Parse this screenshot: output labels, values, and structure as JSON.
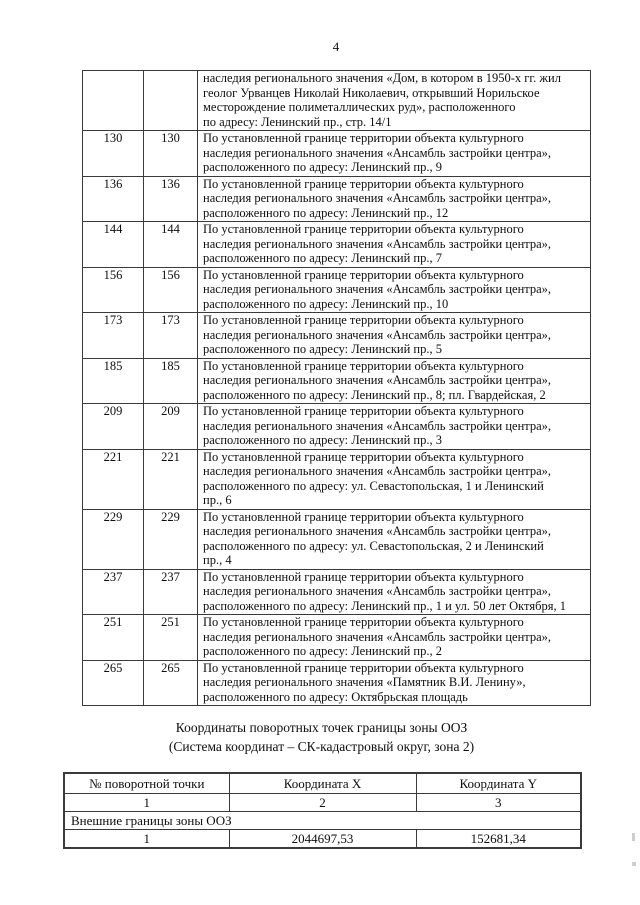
{
  "page": {
    "number": "4"
  },
  "colors": {
    "text_color": "#0e0e0e",
    "border_color": "#3a3a3a",
    "page_background": "#ffffff"
  },
  "table1": {
    "rows": [
      {
        "num1": "",
        "num2": "",
        "description": "наследия регионального значения «Дом, в котором в 1950-х гг. жил\nгеолог Урванцев Николай Николаевич, открывший Норильское\nместорождение полиметаллических руд», расположенного\nпо адресу: Ленинский пр., стр. 14/1"
      },
      {
        "num1": "130",
        "num2": "130",
        "description": "По установленной границе территории объекта культурного\nнаследия регионального значения «Ансамбль застройки центра»,\nрасположенного по адресу: Ленинский пр., 9"
      },
      {
        "num1": "136",
        "num2": "136",
        "description": "По установленной границе территории объекта культурного\nнаследия регионального значения «Ансамбль застройки центра»,\nрасположенного по адресу: Ленинский пр., 12"
      },
      {
        "num1": "144",
        "num2": "144",
        "description": "По установленной границе территории объекта культурного\nнаследия регионального значения «Ансамбль застройки центра»,\nрасположенного по адресу: Ленинский пр., 7"
      },
      {
        "num1": "156",
        "num2": "156",
        "description": "По установленной границе территории объекта культурного\nнаследия регионального значения «Ансамбль застройки центра»,\nрасположенного по адресу: Ленинский пр., 10"
      },
      {
        "num1": "173",
        "num2": "173",
        "description": "По установленной границе территории объекта культурного\nнаследия регионального значения «Ансамбль застройки центра»,\nрасположенного по адресу: Ленинский пр., 5"
      },
      {
        "num1": "185",
        "num2": "185",
        "description": "По установленной границе территории объекта культурного\nнаследия регионального значения «Ансамбль застройки центра»,\nрасположенного по адресу: Ленинский пр., 8; пл. Гвардейская, 2"
      },
      {
        "num1": "209",
        "num2": "209",
        "description": "По установленной границе территории объекта культурного\nнаследия регионального значения «Ансамбль застройки центра»,\nрасположенного по адресу: Ленинский пр., 3"
      },
      {
        "num1": "221",
        "num2": "221",
        "description": "По установленной границе территории объекта культурного\nнаследия регионального значения «Ансамбль застройки центра»,\nрасположенного по адресу: ул. Севастопольская, 1 и Ленинский\nпр., 6"
      },
      {
        "num1": "229",
        "num2": "229",
        "description": "По установленной границе территории объекта культурного\nнаследия регионального значения «Ансамбль застройки центра»,\nрасположенного по адресу: ул. Севастопольская, 2 и Ленинский\nпр., 4"
      },
      {
        "num1": "237",
        "num2": "237",
        "description": "По установленной границе территории объекта культурного\nнаследия регионального значения «Ансамбль застройки центра»,\nрасположенного по адресу: Ленинский пр., 1 и ул. 50 лет Октября, 1"
      },
      {
        "num1": "251",
        "num2": "251",
        "description": "По установленной границе территории объекта культурного\nнаследия регионального значения «Ансамбль застройки центра»,\nрасположенного по адресу: Ленинский пр., 2"
      },
      {
        "num1": "265",
        "num2": "265",
        "description": "По установленной границе территории объекта культурного\nнаследия регионального значения «Памятник В.И. Ленину»,\nрасположенного по адресу: Октябрьская площадь"
      }
    ]
  },
  "heading": {
    "line1": "Координаты поворотных точек границы зоны ООЗ",
    "line2": "(Система координат – СК-кадастровый округ, зона 2)"
  },
  "table2": {
    "headers": [
      "№ поворотной точки",
      "Координата X",
      "Координата Y"
    ],
    "numbering": [
      "1",
      "2",
      "3"
    ],
    "section": "Внешние границы зоны ООЗ",
    "rows": [
      [
        "1",
        "2044697,53",
        "152681,34"
      ]
    ]
  }
}
